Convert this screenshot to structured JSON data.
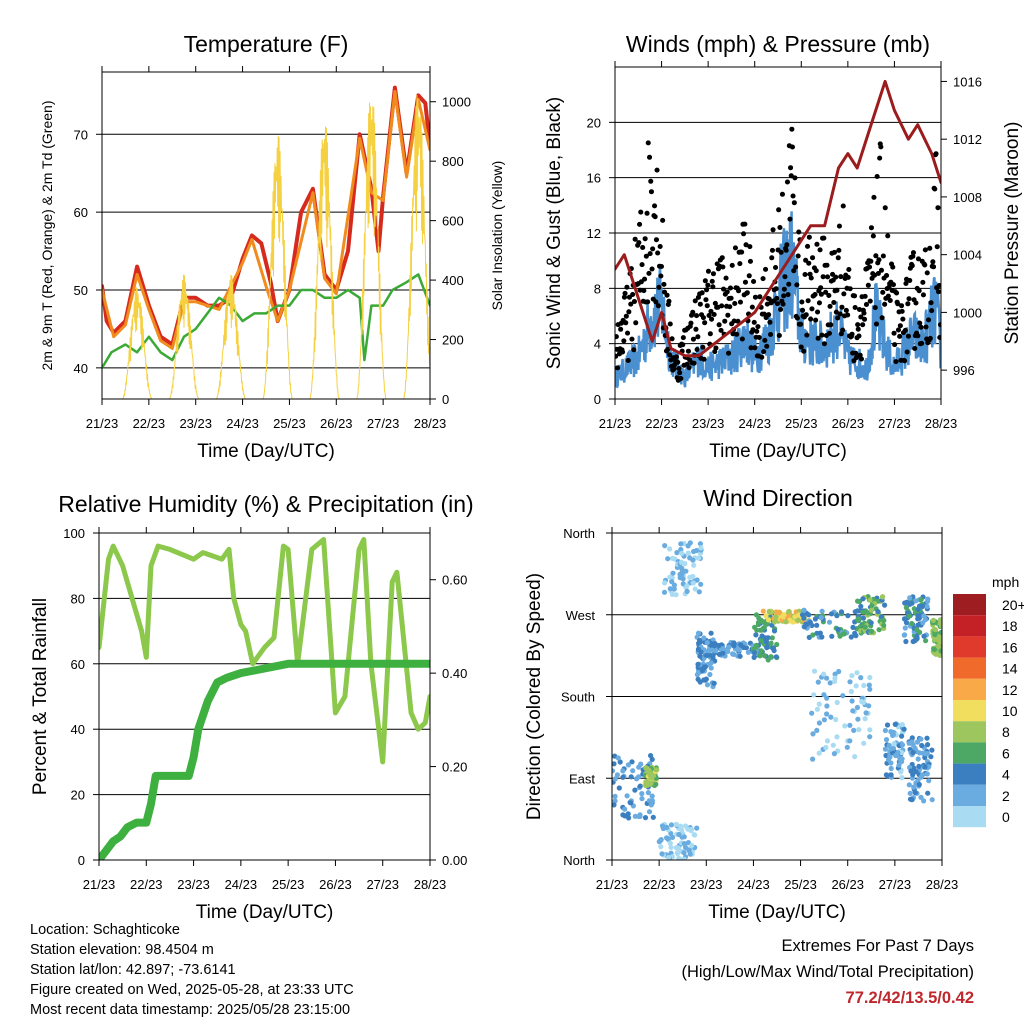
{
  "x_ticks": [
    "21/23",
    "22/23",
    "23/23",
    "24/23",
    "25/23",
    "26/23",
    "27/23",
    "28/23"
  ],
  "xlabel": "Time (Day/UTC)",
  "info": {
    "location": "Location: Schaghticoke",
    "elevation": "Station elevation: 98.4504 m",
    "latlon": "Station lat/lon: 42.897; -73.6141",
    "created": "Figure created on Wed, 2025-05-28, at 23:33 UTC",
    "recent": "Most recent data timestamp: 2025/05/28 23:15:00"
  },
  "extremes": {
    "title": "Extremes For Past 7 Days",
    "subtitle": "(High/Low/Max Wind/Total Precipitation)",
    "values": "77.2/42/13.5/0.42",
    "color": "#c0272d"
  },
  "chart_data": [
    {
      "type": "line",
      "title": "Temperature (F)",
      "xlabel": "Time (Day/UTC)",
      "ylabel": "2m & 9m T (Red, Orange) & 2m Td (Green)",
      "y2label": "Solar Insolation (Yellow)",
      "x_unit": "days since 21/23",
      "ylim": [
        36,
        78
      ],
      "y2lim": [
        0,
        1100
      ],
      "yticks": [
        40,
        50,
        60,
        70
      ],
      "y2ticks": [
        0,
        200,
        400,
        600,
        800,
        1000
      ],
      "grid": true,
      "series": [
        {
          "name": "2m T",
          "color": "#d62a1e",
          "x": [
            0,
            0.1,
            0.25,
            0.5,
            0.75,
            1.0,
            1.25,
            1.5,
            1.75,
            2.0,
            2.25,
            2.5,
            2.75,
            3.0,
            3.2,
            3.4,
            3.6,
            3.75,
            4.0,
            4.25,
            4.5,
            4.75,
            5.0,
            5.25,
            5.5,
            5.75,
            5.9,
            6.0,
            6.25,
            6.5,
            6.75,
            6.9,
            7.0
          ],
          "y": [
            50.5,
            46,
            44.5,
            46,
            53,
            48,
            44,
            43,
            49,
            49,
            48,
            48,
            49,
            54,
            57,
            56,
            51,
            46,
            50,
            60,
            63,
            52,
            50,
            55,
            70,
            63,
            55,
            62,
            76,
            65,
            75,
            74,
            68.5
          ]
        },
        {
          "name": "9m T",
          "color": "#f08c1e",
          "x": [
            0,
            0.25,
            0.5,
            0.75,
            1.0,
            1.25,
            1.5,
            1.75,
            2.0,
            2.5,
            3.0,
            3.2,
            3.5,
            3.75,
            4.0,
            4.5,
            4.75,
            5.0,
            5.5,
            5.75,
            6.0,
            6.25,
            6.5,
            6.75,
            7.0
          ],
          "y": [
            50,
            44,
            45.5,
            52,
            47.5,
            43.5,
            42.5,
            48.5,
            48.5,
            47.5,
            53.5,
            56.5,
            50.5,
            46,
            50,
            62.5,
            51.5,
            49.5,
            69.5,
            62.5,
            61.5,
            75.5,
            64.5,
            74.5,
            68
          ]
        },
        {
          "name": "2m Td",
          "color": "#3aa935",
          "x": [
            0,
            0.2,
            0.5,
            0.75,
            1.0,
            1.25,
            1.5,
            1.75,
            2.0,
            2.25,
            2.5,
            2.75,
            3.0,
            3.25,
            3.5,
            3.75,
            4.0,
            4.25,
            4.5,
            4.75,
            5.0,
            5.25,
            5.5,
            5.6,
            5.75,
            6.0,
            6.2,
            6.5,
            6.75,
            7.0
          ],
          "y": [
            40,
            42,
            43,
            42,
            44,
            42,
            41,
            44,
            45,
            47,
            49,
            48,
            46,
            47,
            47,
            48,
            48,
            50,
            50,
            49,
            49,
            50,
            49,
            41,
            48,
            48,
            50,
            51,
            52,
            48
          ]
        },
        {
          "name": "Solar Insolation",
          "color": "#f5d040",
          "axis": "y2",
          "peaks_x": [
            0.75,
            1.75,
            2.75,
            3.75,
            4.75,
            5.75,
            6.75
          ],
          "peaks_y": [
            380,
            420,
            420,
            900,
            950,
            1050,
            1050
          ]
        }
      ]
    },
    {
      "type": "line",
      "title": "Winds (mph) & Pressure (mb)",
      "xlabel": "Time (Day/UTC)",
      "ylabel": "Sonic Wind & Gust (Blue, Black)",
      "y2label": "Station Pressure (Maroon)",
      "x_unit": "days since 21/23",
      "ylim": [
        0,
        24
      ],
      "y2lim": [
        994,
        1017
      ],
      "yticks": [
        0,
        4,
        8,
        12,
        16,
        20
      ],
      "y2ticks": [
        996,
        1000,
        1004,
        1008,
        1012,
        1016
      ],
      "grid": true,
      "series": [
        {
          "name": "Sonic Wind",
          "color": "#4a90d0",
          "x": [
            0,
            0.5,
            0.8,
            1.0,
            1.2,
            1.5,
            1.8,
            2.0,
            2.5,
            2.8,
            3.0,
            3.3,
            3.6,
            3.8,
            4.0,
            4.5,
            4.8,
            5.0,
            5.4,
            5.6,
            5.8,
            6.0,
            6.4,
            6.6,
            6.9,
            7.0
          ],
          "y": [
            2,
            4,
            8,
            9,
            4,
            2,
            4,
            3,
            4,
            6,
            4,
            6,
            11,
            13,
            6,
            5,
            7,
            4,
            3,
            8,
            5,
            3,
            6,
            5,
            9,
            4
          ]
        },
        {
          "name": "Gust",
          "color": "#000000",
          "x": [
            0,
            0.3,
            0.6,
            0.8,
            0.95,
            1.1,
            1.3,
            1.6,
            1.9,
            2.2,
            2.5,
            2.8,
            3.0,
            3.3,
            3.6,
            3.8,
            4.0,
            4.3,
            4.6,
            4.9,
            5.1,
            5.4,
            5.7,
            5.9,
            6.1,
            6.4,
            6.7,
            6.9,
            7.0
          ],
          "y": [
            5,
            8,
            14,
            21,
            16,
            8,
            3,
            6,
            8,
            10,
            9,
            13,
            7,
            10,
            14,
            20,
            9,
            12,
            10,
            13,
            7,
            9,
            17,
            10,
            6,
            10,
            10,
            17,
            8
          ]
        },
        {
          "name": "Pressure",
          "color": "#9b1c1c",
          "axis": "y2",
          "x": [
            0,
            0.2,
            0.5,
            0.8,
            1.0,
            1.2,
            1.5,
            1.8,
            2.2,
            2.6,
            3.0,
            3.4,
            3.8,
            4.2,
            4.5,
            4.8,
            5.0,
            5.2,
            5.5,
            5.8,
            6.0,
            6.3,
            6.5,
            6.8,
            7.0
          ],
          "y": [
            1003,
            1004,
            1001,
            998,
            1000,
            997.5,
            997,
            997,
            998,
            999,
            1000,
            1002,
            1004,
            1006,
            1006,
            1010,
            1011,
            1010,
            1013,
            1016,
            1014,
            1012,
            1013,
            1011,
            1009
          ]
        }
      ]
    },
    {
      "type": "line",
      "title": "Relative Humidity (%) & Precipitation (in)",
      "xlabel": "Time (Day/UTC)",
      "ylabel": "Percent & Total Rainfall",
      "x_unit": "days since 21/23",
      "ylim": [
        0,
        100
      ],
      "y2lim": [
        0,
        0.7
      ],
      "yticks": [
        0,
        20,
        40,
        60,
        80,
        100
      ],
      "y2ticks": [
        0.0,
        0.2,
        0.4,
        0.6
      ],
      "grid": true,
      "series": [
        {
          "name": "Relative Humidity",
          "color": "#8cc84b",
          "x": [
            0,
            0.2,
            0.3,
            0.5,
            0.7,
            0.9,
            1.0,
            1.1,
            1.25,
            1.5,
            2.0,
            2.2,
            2.4,
            2.6,
            2.75,
            2.85,
            3.0,
            3.1,
            3.25,
            3.5,
            3.7,
            3.9,
            4.0,
            4.2,
            4.5,
            4.75,
            5.0,
            5.2,
            5.5,
            5.6,
            5.75,
            6.0,
            6.2,
            6.3,
            6.6,
            6.75,
            6.9,
            7.0
          ],
          "y": [
            65,
            92,
            96,
            90,
            80,
            70,
            62,
            90,
            96,
            95,
            92,
            94,
            93,
            92,
            95,
            80,
            72,
            70,
            60,
            65,
            68,
            96,
            95,
            60,
            95,
            98,
            45,
            50,
            95,
            98,
            60,
            30,
            85,
            88,
            45,
            40,
            42,
            50
          ]
        },
        {
          "name": "Total Rainfall",
          "color": "#3db040",
          "axis": "y2",
          "x": [
            0,
            0.3,
            0.45,
            0.6,
            0.8,
            1.0,
            1.1,
            1.2,
            1.5,
            1.9,
            2.0,
            2.1,
            2.3,
            2.5,
            2.7,
            3.0,
            3.5,
            4.0,
            7.0
          ],
          "y": [
            0,
            0.04,
            0.05,
            0.07,
            0.08,
            0.08,
            0.12,
            0.18,
            0.18,
            0.18,
            0.22,
            0.28,
            0.34,
            0.38,
            0.39,
            0.4,
            0.41,
            0.42,
            0.42
          ]
        }
      ]
    },
    {
      "type": "scatter",
      "title": "Wind Direction",
      "xlabel": "Time (Day/UTC)",
      "ylabel": "Direction (Colored By Speed)",
      "x_unit": "days since 21/23",
      "ylim": [
        0,
        360
      ],
      "ytick_labels": [
        "North",
        "East",
        "South",
        "West",
        "North"
      ],
      "grid": true,
      "colorbar": {
        "title": "mph",
        "labels": [
          "20+",
          "18",
          "16",
          "14",
          "12",
          "10",
          "8",
          "6",
          "4",
          "2",
          "0"
        ],
        "colors": [
          "#9e1d21",
          "#c42127",
          "#e03a2c",
          "#f06b2b",
          "#f9a948",
          "#f1de5e",
          "#9dc75e",
          "#4ea865",
          "#3b7fc0",
          "#6aace0",
          "#a9dcf2"
        ]
      },
      "clusters": [
        {
          "x": 0.0,
          "x2": 0.9,
          "y": 80,
          "spread": 35,
          "speed": 3
        },
        {
          "x": 0.7,
          "x2": 0.95,
          "y": 92,
          "spread": 10,
          "speed": 8
        },
        {
          "x": 1.0,
          "x2": 1.8,
          "y": 20,
          "spread": 20,
          "speed": 1
        },
        {
          "x": 1.1,
          "x2": 1.9,
          "y": 320,
          "spread": 30,
          "speed": 1
        },
        {
          "x": 1.8,
          "x2": 2.2,
          "y": 220,
          "spread": 30,
          "speed": 3
        },
        {
          "x": 2.0,
          "x2": 3.2,
          "y": 232,
          "spread": 8,
          "speed": 3
        },
        {
          "x": 3.0,
          "x2": 3.5,
          "y": 245,
          "spread": 25,
          "speed": 5
        },
        {
          "x": 3.2,
          "x2": 4.2,
          "y": 268,
          "spread": 6,
          "speed": 10
        },
        {
          "x": 4.0,
          "x2": 5.4,
          "y": 260,
          "spread": 15,
          "speed": 4
        },
        {
          "x": 4.2,
          "x2": 5.5,
          "y": 160,
          "spread": 50,
          "speed": 1
        },
        {
          "x": 5.2,
          "x2": 5.8,
          "y": 270,
          "spread": 20,
          "speed": 6
        },
        {
          "x": 5.8,
          "x2": 6.2,
          "y": 120,
          "spread": 30,
          "speed": 2
        },
        {
          "x": 6.2,
          "x2": 6.7,
          "y": 265,
          "spread": 25,
          "speed": 4
        },
        {
          "x": 6.3,
          "x2": 6.8,
          "y": 100,
          "spread": 35,
          "speed": 3
        },
        {
          "x": 6.8,
          "x2": 7.0,
          "y": 245,
          "spread": 20,
          "speed": 7
        }
      ]
    }
  ]
}
